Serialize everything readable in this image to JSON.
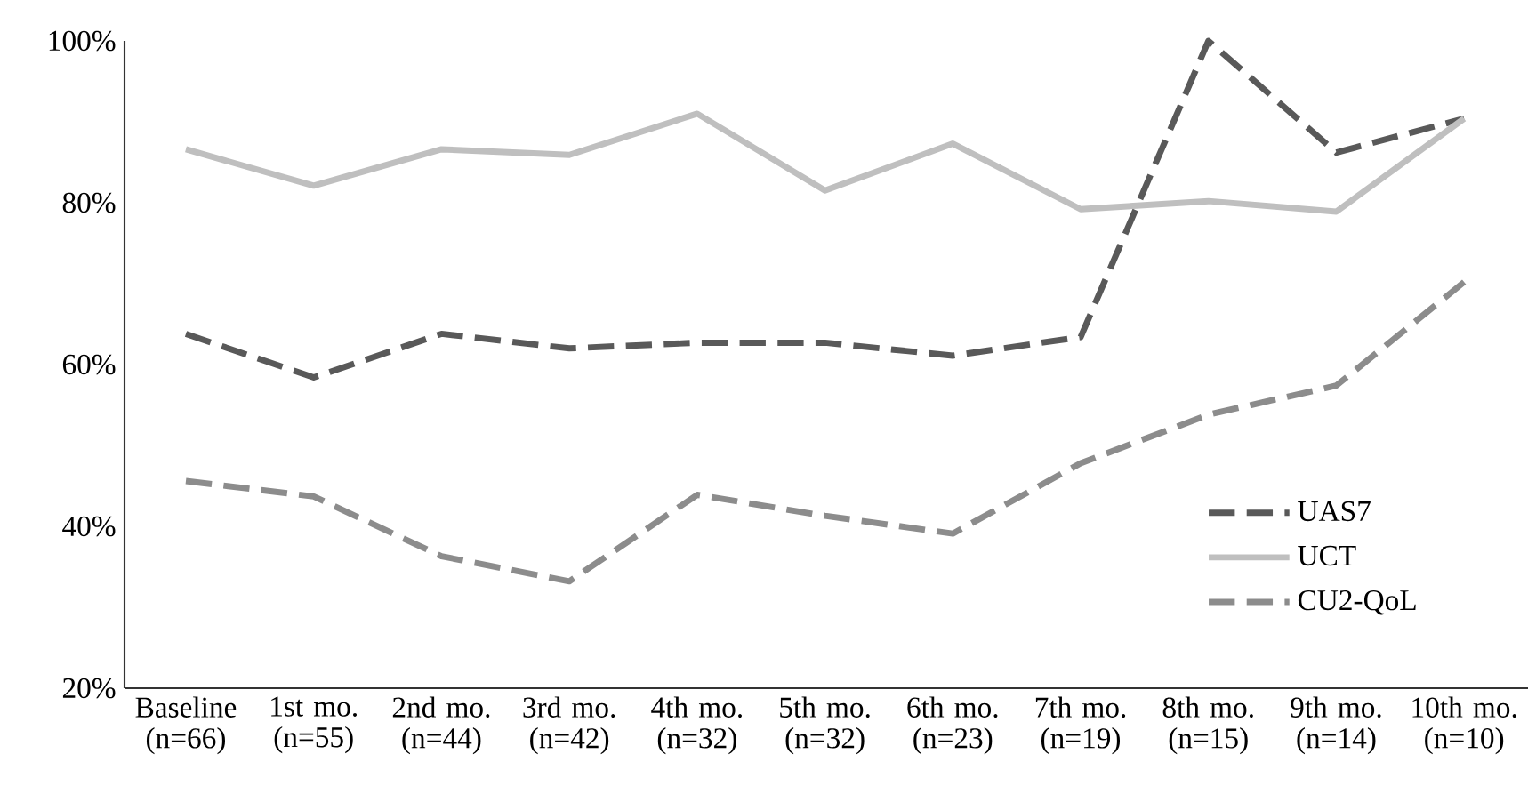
{
  "chart_data": {
    "type": "line",
    "categories": [
      "Baseline (n=66)",
      "1st mo. (n=55)",
      "2nd mo. (n=44)",
      "3rd mo. (n=42)",
      "4th mo. (n=32)",
      "5th mo. (n=32)",
      "6th mo. (n=23)",
      "7th mo. (n=19)",
      "8th mo. (n=15)",
      "9th mo. (n=14)",
      "10th mo. (n=10)"
    ],
    "series": [
      {
        "name": "UAS7",
        "color": "#595959",
        "line_style": "dashed",
        "values": [
          63.8,
          58.4,
          63.8,
          62.0,
          62.7,
          62.7,
          61.1,
          63.4,
          100,
          86.2,
          90.4
        ]
      },
      {
        "name": "UCT",
        "color": "#bfbfbf",
        "line_style": "solid",
        "values": [
          86.6,
          82.1,
          86.6,
          85.9,
          91.0,
          81.5,
          87.3,
          79.2,
          80.2,
          78.9,
          90.4
        ]
      },
      {
        "name": "CU2-QoL",
        "color": "#8c8c8c",
        "line_style": "dashed",
        "values": [
          45.6,
          43.7,
          36.3,
          33.2,
          43.9,
          41.3,
          39.1,
          47.8,
          53.8,
          57.4,
          70.2
        ]
      }
    ],
    "ylim": [
      20,
      100
    ],
    "yticks": [
      {
        "value": 20,
        "label": "20%"
      },
      {
        "value": 40,
        "label": "40%"
      },
      {
        "value": 60,
        "label": "60%"
      },
      {
        "value": 80,
        "label": "80%"
      },
      {
        "value": 100,
        "label": "100%"
      }
    ],
    "grid": false,
    "legend": "bottom right",
    "marker": "none"
  }
}
